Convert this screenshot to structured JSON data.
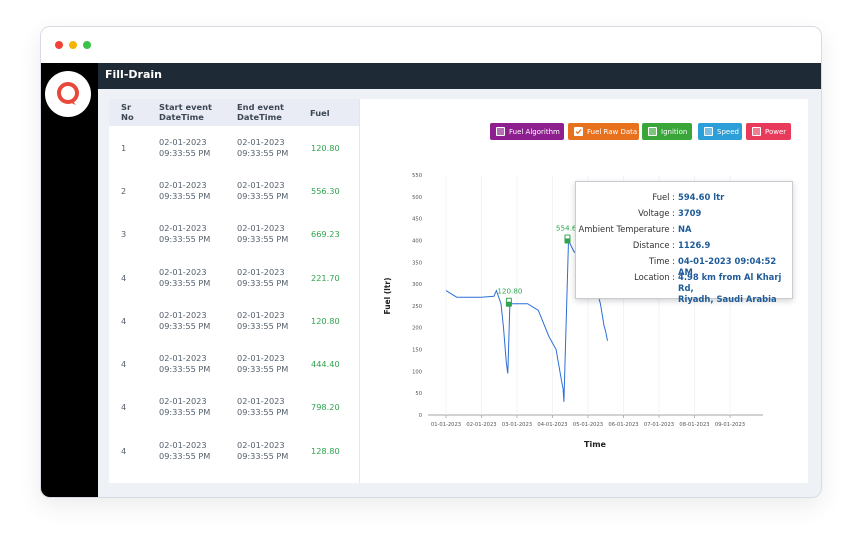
{
  "app": {
    "title": "Fill-Drain"
  },
  "table": {
    "headers": {
      "sr": "Sr\nNo",
      "start": "Start event\nDateTime",
      "end": "End event\nDateTime",
      "fuel": "Fuel"
    },
    "rows": [
      {
        "sr": "1",
        "start_date": "02-01-2023",
        "start_time": "09:33:55 PM",
        "end_date": "02-01-2023",
        "end_time": "09:33:55 PM",
        "fuel": "120.80"
      },
      {
        "sr": "2",
        "start_date": "02-01-2023",
        "start_time": "09:33:55 PM",
        "end_date": "02-01-2023",
        "end_time": "09:33:55 PM",
        "fuel": "556.30"
      },
      {
        "sr": "3",
        "start_date": "02-01-2023",
        "start_time": "09:33:55 PM",
        "end_date": "02-01-2023",
        "end_time": "09:33:55 PM",
        "fuel": "669.23"
      },
      {
        "sr": "4",
        "start_date": "02-01-2023",
        "start_time": "09:33:55 PM",
        "end_date": "02-01-2023",
        "end_time": "09:33:55 PM",
        "fuel": "221.70"
      },
      {
        "sr": "4",
        "start_date": "02-01-2023",
        "start_time": "09:33:55 PM",
        "end_date": "02-01-2023",
        "end_time": "09:33:55 PM",
        "fuel": "120.80"
      },
      {
        "sr": "4",
        "start_date": "02-01-2023",
        "start_time": "09:33:55 PM",
        "end_date": "02-01-2023",
        "end_time": "09:33:55 PM",
        "fuel": "444.40"
      },
      {
        "sr": "4",
        "start_date": "02-01-2023",
        "start_time": "09:33:55 PM",
        "end_date": "02-01-2023",
        "end_time": "09:33:55 PM",
        "fuel": "798.20"
      },
      {
        "sr": "4",
        "start_date": "02-01-2023",
        "start_time": "09:33:55 PM",
        "end_date": "02-01-2023",
        "end_time": "09:33:55 PM",
        "fuel": "128.80"
      }
    ]
  },
  "legend": [
    {
      "label": "Fuel Algorithm",
      "color": "#8e1f8f",
      "checked": false
    },
    {
      "label": "Fuel Raw Data",
      "color": "#e8711d",
      "checked": true
    },
    {
      "label": "Ignition",
      "color": "#3aa63a",
      "checked": false
    },
    {
      "label": "Speed",
      "color": "#2d9fd8",
      "checked": false
    },
    {
      "label": "Power",
      "color": "#e83a5a",
      "checked": false
    }
  ],
  "tooltip": {
    "fuel_label": "Fuel :",
    "fuel_value": "594.60 ltr",
    "voltage_label": "Voltage :",
    "voltage_value": "3709",
    "temp_label": "Ambient Temperature :",
    "temp_value": "NA",
    "distance_label": "Distance :",
    "distance_value": "1126.9",
    "time_label": "Time :",
    "time_value": "04-01-2023 09:04:52 AM",
    "location_label": "Location :",
    "location_value_1": "4.98 km from Al Kharj Rd,",
    "location_value_2": "Riyadh, Saudi Arabia"
  },
  "chart_data": {
    "type": "line",
    "xlabel": "Time",
    "ylabel": "Fuel (ltr)",
    "ylim": [
      0,
      550
    ],
    "yticks": [
      "0",
      "50",
      "100",
      "150",
      "200",
      "250",
      "300",
      "350",
      "400",
      "450",
      "500",
      "550"
    ],
    "xticks": [
      "01-01-2023",
      "02-01-2023",
      "03-01-2023",
      "04-01-2023",
      "05-01-2023",
      "06-01-2023",
      "07-01-2023",
      "08-01-2023",
      "09-01-2023"
    ],
    "series": [
      {
        "color": "#2d6fd6",
        "x": [
          0.0,
          0.3,
          1.0,
          1.35,
          1.42,
          1.55,
          1.62,
          1.7,
          1.74,
          1.8,
          2.3,
          2.6,
          2.9,
          3.1,
          3.25,
          3.3,
          3.32,
          3.45,
          3.6,
          3.8,
          4.0,
          4.2,
          4.35,
          4.45,
          4.5,
          4.55
        ],
        "y": [
          285,
          270,
          270,
          272,
          285,
          255,
          200,
          120,
          95,
          255,
          255,
          240,
          180,
          150,
          80,
          60,
          30,
          400,
          375,
          360,
          330,
          300,
          255,
          205,
          190,
          170
        ]
      }
    ],
    "annotations": [
      {
        "label": "120.80",
        "x": 1.8,
        "y": 255
      },
      {
        "label": "554.60",
        "x": 3.45,
        "y": 400
      }
    ]
  }
}
